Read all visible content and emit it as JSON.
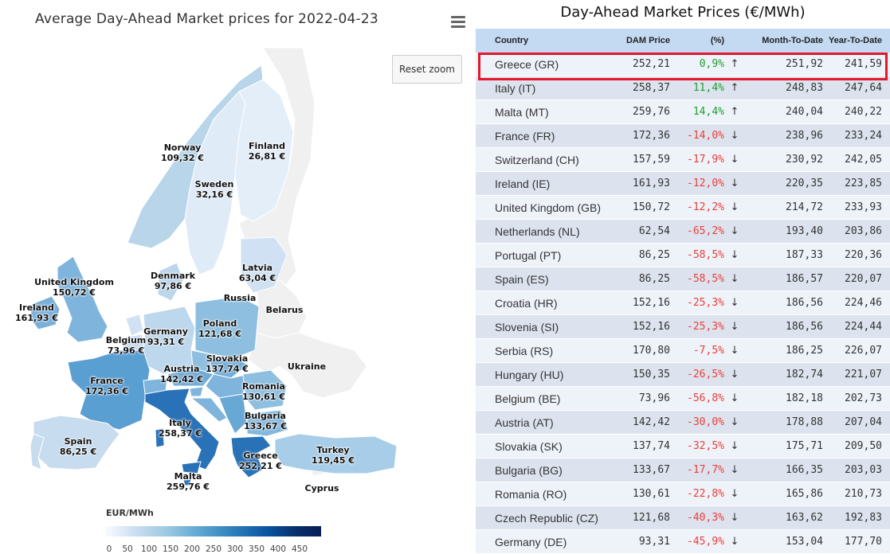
{
  "map": {
    "title": "Average Day-Ahead Market prices for 2022-04-23",
    "reset_zoom_label": "Reset zoom",
    "legend_title": "EUR/MWh",
    "legend_ticks": [
      "0",
      "50",
      "100",
      "150",
      "200",
      "250",
      "300",
      "350",
      "400",
      "450"
    ],
    "labels": {
      "norway": {
        "name": "Norway",
        "value": "109,32 €"
      },
      "finland": {
        "name": "Finland",
        "value": "26,81 €"
      },
      "sweden": {
        "name": "Sweden",
        "value": "32,16 €"
      },
      "denmark": {
        "name": "Denmark",
        "value": "97,86 €"
      },
      "latvia": {
        "name": "Latvia",
        "value": "63,04 €"
      },
      "uk": {
        "name": "United Kingdom",
        "value": "150,72 €"
      },
      "ireland": {
        "name": "Ireland",
        "value": "161,93 €"
      },
      "russia": {
        "name": "Russia"
      },
      "belarus": {
        "name": "Belarus"
      },
      "poland": {
        "name": "Poland",
        "value": "121,68 €"
      },
      "germany": {
        "name": "Germany",
        "value": "93,31 €"
      },
      "belgium": {
        "name": "Belgium",
        "value": "73,96 €"
      },
      "slovakia": {
        "name": "Slovakia",
        "value": "137,74 €"
      },
      "ukraine": {
        "name": "Ukraine"
      },
      "austria": {
        "name": "Austria",
        "value": "142,42 €"
      },
      "france": {
        "name": "France",
        "value": "172,36 €"
      },
      "romania": {
        "name": "Romania",
        "value": "130,61 €"
      },
      "bulgaria": {
        "name": "Bulgaria",
        "value": "133,67 €"
      },
      "italy": {
        "name": "Italy",
        "value": "258,37 €"
      },
      "spain": {
        "name": "Spain",
        "value": "86,25 €"
      },
      "greece": {
        "name": "Greece",
        "value": "252,21 €"
      },
      "turkey": {
        "name": "Turkey",
        "value": "119,45 €"
      },
      "malta": {
        "name": "Malta",
        "value": "259,76 €"
      },
      "cyprus": {
        "name": "Cyprus"
      }
    }
  },
  "table": {
    "title": "Day-Ahead Market Prices (€/MWh)",
    "headers": {
      "country": "Country",
      "dam": "DAM Price",
      "pct": "(%)",
      "mtd": "Month-To-Date",
      "ytd": "Year-To-Date"
    },
    "rows": [
      {
        "country": "Greece (GR)",
        "dam": "252,21",
        "pct": "0,9%",
        "dir": "up",
        "mtd": "251,92",
        "ytd": "241,59"
      },
      {
        "country": "Italy (IT)",
        "dam": "258,37",
        "pct": "11,4%",
        "dir": "up",
        "mtd": "248,83",
        "ytd": "247,64"
      },
      {
        "country": "Malta (MT)",
        "dam": "259,76",
        "pct": "14,4%",
        "dir": "up",
        "mtd": "240,04",
        "ytd": "240,22"
      },
      {
        "country": "France (FR)",
        "dam": "172,36",
        "pct": "-14,0%",
        "dir": "down",
        "mtd": "238,96",
        "ytd": "233,24"
      },
      {
        "country": "Switzerland (CH)",
        "dam": "157,59",
        "pct": "-17,9%",
        "dir": "down",
        "mtd": "230,92",
        "ytd": "242,05"
      },
      {
        "country": "Ireland (IE)",
        "dam": "161,93",
        "pct": "-12,0%",
        "dir": "down",
        "mtd": "220,35",
        "ytd": "223,85"
      },
      {
        "country": "United Kingdom (GB)",
        "dam": "150,72",
        "pct": "-12,2%",
        "dir": "down",
        "mtd": "214,72",
        "ytd": "233,93"
      },
      {
        "country": "Netherlands (NL)",
        "dam": "62,54",
        "pct": "-65,2%",
        "dir": "down",
        "mtd": "193,40",
        "ytd": "203,86"
      },
      {
        "country": "Portugal (PT)",
        "dam": "86,25",
        "pct": "-58,5%",
        "dir": "down",
        "mtd": "187,33",
        "ytd": "220,36"
      },
      {
        "country": "Spain (ES)",
        "dam": "86,25",
        "pct": "-58,5%",
        "dir": "down",
        "mtd": "186,57",
        "ytd": "220,07"
      },
      {
        "country": "Croatia (HR)",
        "dam": "152,16",
        "pct": "-25,3%",
        "dir": "down",
        "mtd": "186,56",
        "ytd": "224,46"
      },
      {
        "country": "Slovenia (SI)",
        "dam": "152,16",
        "pct": "-25,3%",
        "dir": "down",
        "mtd": "186,56",
        "ytd": "224,44"
      },
      {
        "country": "Serbia (RS)",
        "dam": "170,80",
        "pct": "-7,5%",
        "dir": "down",
        "mtd": "186,25",
        "ytd": "226,07"
      },
      {
        "country": "Hungary (HU)",
        "dam": "150,35",
        "pct": "-26,5%",
        "dir": "down",
        "mtd": "182,74",
        "ytd": "221,07"
      },
      {
        "country": "Belgium (BE)",
        "dam": "73,96",
        "pct": "-56,8%",
        "dir": "down",
        "mtd": "182,18",
        "ytd": "202,73"
      },
      {
        "country": "Austria (AT)",
        "dam": "142,42",
        "pct": "-30,0%",
        "dir": "down",
        "mtd": "178,88",
        "ytd": "207,04"
      },
      {
        "country": "Slovakia (SK)",
        "dam": "137,74",
        "pct": "-32,5%",
        "dir": "down",
        "mtd": "175,71",
        "ytd": "209,50"
      },
      {
        "country": "Bulgaria (BG)",
        "dam": "133,67",
        "pct": "-17,7%",
        "dir": "down",
        "mtd": "166,35",
        "ytd": "203,03"
      },
      {
        "country": "Romania (RO)",
        "dam": "130,61",
        "pct": "-22,8%",
        "dir": "down",
        "mtd": "165,86",
        "ytd": "210,73"
      },
      {
        "country": "Czech Republic (CZ)",
        "dam": "121,68",
        "pct": "-40,3%",
        "dir": "down",
        "mtd": "163,62",
        "ytd": "192,83"
      },
      {
        "country": "Germany (DE)",
        "dam": "93,31",
        "pct": "-45,9%",
        "dir": "down",
        "mtd": "153,04",
        "ytd": "177,70"
      }
    ]
  },
  "colors": {
    "header_bg": "#c4d9f2",
    "row_odd": "#eef2f9",
    "row_even": "#dde3ee",
    "up": "#1e9d2e",
    "down": "#e8403a",
    "highlight": "#e3182d"
  },
  "icons": {
    "up": "arrow-up-icon",
    "down": "arrow-down-icon",
    "menu": "hamburger-menu-icon"
  }
}
